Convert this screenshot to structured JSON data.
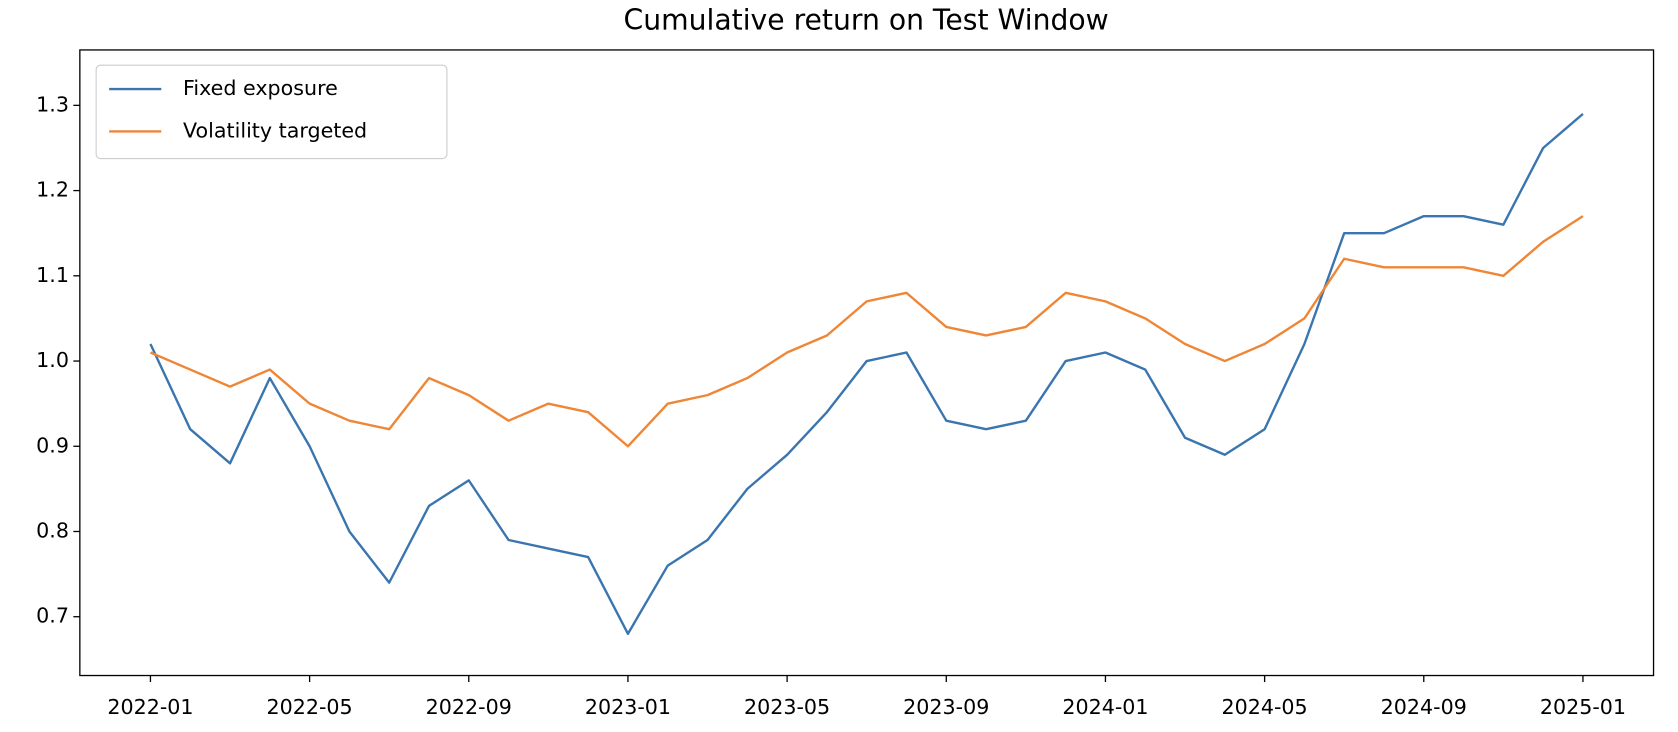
{
  "chart_data": {
    "type": "line",
    "title": "Cumulative return on Test Window",
    "x": [
      "2022-01",
      "2022-02",
      "2022-03",
      "2022-04",
      "2022-05",
      "2022-06",
      "2022-07",
      "2022-08",
      "2022-09",
      "2022-10",
      "2022-11",
      "2022-12",
      "2023-01",
      "2023-02",
      "2023-03",
      "2023-04",
      "2023-05",
      "2023-06",
      "2023-07",
      "2023-08",
      "2023-09",
      "2023-10",
      "2023-11",
      "2023-12",
      "2024-01",
      "2024-02",
      "2024-03",
      "2024-04",
      "2024-05",
      "2024-06",
      "2024-07",
      "2024-08",
      "2024-09",
      "2024-10",
      "2024-11",
      "2024-12",
      "2025-01"
    ],
    "series": [
      {
        "name": "Fixed exposure",
        "color": "#3a75af",
        "values": [
          1.02,
          0.92,
          0.88,
          0.98,
          0.9,
          0.8,
          0.74,
          0.83,
          0.86,
          0.79,
          0.78,
          0.77,
          0.68,
          0.76,
          0.79,
          0.85,
          0.89,
          0.94,
          1.0,
          1.01,
          0.93,
          0.92,
          0.93,
          1.0,
          1.01,
          0.99,
          0.91,
          0.89,
          0.92,
          1.02,
          1.15,
          1.15,
          1.17,
          1.17,
          1.16,
          1.25,
          1.29
        ]
      },
      {
        "name": "Volatility targeted",
        "color": "#ef8636",
        "values": [
          1.01,
          0.99,
          0.97,
          0.99,
          0.95,
          0.93,
          0.92,
          0.98,
          0.96,
          0.93,
          0.95,
          0.94,
          0.9,
          0.95,
          0.96,
          0.98,
          1.01,
          1.03,
          1.07,
          1.08,
          1.04,
          1.03,
          1.04,
          1.08,
          1.07,
          1.05,
          1.02,
          1.0,
          1.02,
          1.05,
          1.12,
          1.11,
          1.11,
          1.11,
          1.1,
          1.14,
          1.17
        ]
      }
    ],
    "xticks": [
      "2022-01",
      "2022-05",
      "2022-09",
      "2023-01",
      "2023-05",
      "2023-09",
      "2024-01",
      "2024-05",
      "2024-09",
      "2025-01"
    ],
    "ylim": [
      0.631,
      1.365
    ],
    "yticks": [
      0.7,
      0.8,
      0.9,
      1.0,
      1.1,
      1.2,
      1.3
    ],
    "legend": "upper left",
    "grid": false
  }
}
